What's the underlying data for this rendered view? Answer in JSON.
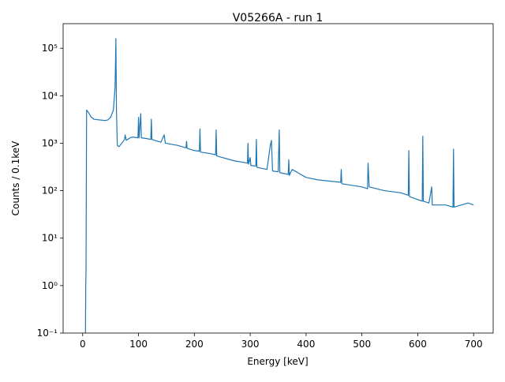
{
  "chart_data": {
    "type": "line",
    "title": "V05266A - run 1",
    "x_label": "Energy [keV]",
    "y_label": "Counts / 0.1keV",
    "log_y": true,
    "grid": false,
    "xlim": [
      -35,
      735
    ],
    "xticks": [
      0,
      100,
      200,
      300,
      400,
      500,
      600,
      700
    ],
    "ylim": [
      0.1,
      330000
    ],
    "yticks": [
      {
        "value": 0.1,
        "label": "10⁻¹"
      },
      {
        "value": 1,
        "label": "10⁰"
      },
      {
        "value": 10,
        "label": "10¹"
      },
      {
        "value": 100,
        "label": "10²"
      },
      {
        "value": 1000,
        "label": "10³"
      },
      {
        "value": 10000,
        "label": "10⁴"
      },
      {
        "value": 100000,
        "label": "10⁵"
      }
    ],
    "x": [
      5,
      5.5,
      6,
      7,
      10,
      15,
      20,
      30,
      40,
      45,
      50,
      55,
      58,
      59.5,
      60.5,
      62,
      65,
      70,
      75,
      76,
      78,
      85,
      90,
      99,
      100,
      101,
      104,
      105,
      115,
      122,
      123,
      124,
      140,
      146,
      148,
      170,
      185,
      186,
      187,
      200,
      209,
      210,
      211,
      230,
      238,
      239,
      240,
      270,
      295,
      296,
      297,
      300,
      301,
      310,
      311,
      312,
      330,
      336,
      338,
      340,
      350,
      352,
      353,
      368,
      369,
      370,
      375,
      400,
      420,
      462,
      463,
      464,
      500,
      510,
      511,
      513,
      540,
      570,
      583,
      584,
      585,
      600,
      608,
      609,
      610,
      620,
      625,
      626,
      650,
      663,
      664,
      665,
      690,
      700
    ],
    "series": [
      {
        "name": "run 1",
        "color": "#1f77b4",
        "values": [
          0.1,
          1,
          2,
          5000,
          4500,
          3600,
          3200,
          3100,
          3000,
          3100,
          3500,
          5000,
          15000,
          160000,
          5000,
          900,
          850,
          1000,
          1200,
          1500,
          1150,
          1300,
          1350,
          1300,
          3500,
          1300,
          4200,
          1300,
          1250,
          1200,
          3200,
          1200,
          1050,
          1500,
          1000,
          900,
          800,
          1100,
          780,
          700,
          680,
          2000,
          650,
          600,
          570,
          1900,
          540,
          430,
          380,
          1000,
          360,
          500,
          340,
          330,
          1200,
          310,
          280,
          900,
          1150,
          260,
          250,
          1900,
          240,
          220,
          450,
          210,
          280,
          190,
          170,
          150,
          280,
          140,
          120,
          110,
          380,
          120,
          100,
          90,
          80,
          700,
          75,
          65,
          60,
          1400,
          60,
          55,
          120,
          50,
          50,
          45,
          750,
          45,
          55,
          50
        ]
      }
    ]
  }
}
